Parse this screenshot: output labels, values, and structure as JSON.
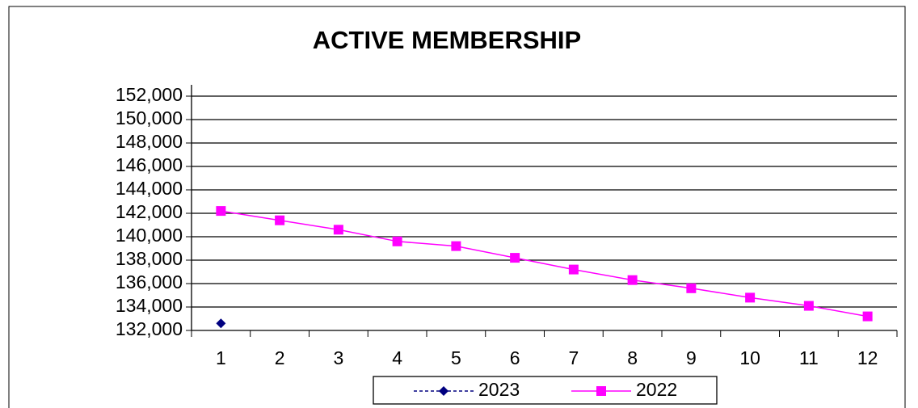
{
  "chart_data": {
    "type": "line",
    "title": "ACTIVE MEMBERSHIP",
    "categories": [
      "1",
      "2",
      "3",
      "4",
      "5",
      "6",
      "7",
      "8",
      "9",
      "10",
      "11",
      "12"
    ],
    "series": [
      {
        "name": "2023",
        "color": "#000080",
        "marker": "diamond",
        "dash": true,
        "values": [
          132600,
          null,
          null,
          null,
          null,
          null,
          null,
          null,
          null,
          null,
          null,
          null
        ]
      },
      {
        "name": "2022",
        "color": "#ff00ff",
        "marker": "square",
        "dash": false,
        "values": [
          142200,
          141400,
          140600,
          139600,
          139200,
          138200,
          137200,
          136300,
          135600,
          134800,
          134100,
          133200
        ]
      }
    ],
    "ylim": [
      132000,
      152000
    ],
    "yticks": [
      {
        "value": 132000,
        "label": "132,000"
      },
      {
        "value": 134000,
        "label": "134,000"
      },
      {
        "value": 136000,
        "label": "136,000"
      },
      {
        "value": 138000,
        "label": "138,000"
      },
      {
        "value": 140000,
        "label": "140,000"
      },
      {
        "value": 142000,
        "label": "142,000"
      },
      {
        "value": 144000,
        "label": "144,000"
      },
      {
        "value": 146000,
        "label": "146,000"
      },
      {
        "value": 148000,
        "label": "148,000"
      },
      {
        "value": 150000,
        "label": "150,000"
      },
      {
        "value": 152000,
        "label": "152,000"
      }
    ],
    "grid": true,
    "legend": "bottom"
  }
}
